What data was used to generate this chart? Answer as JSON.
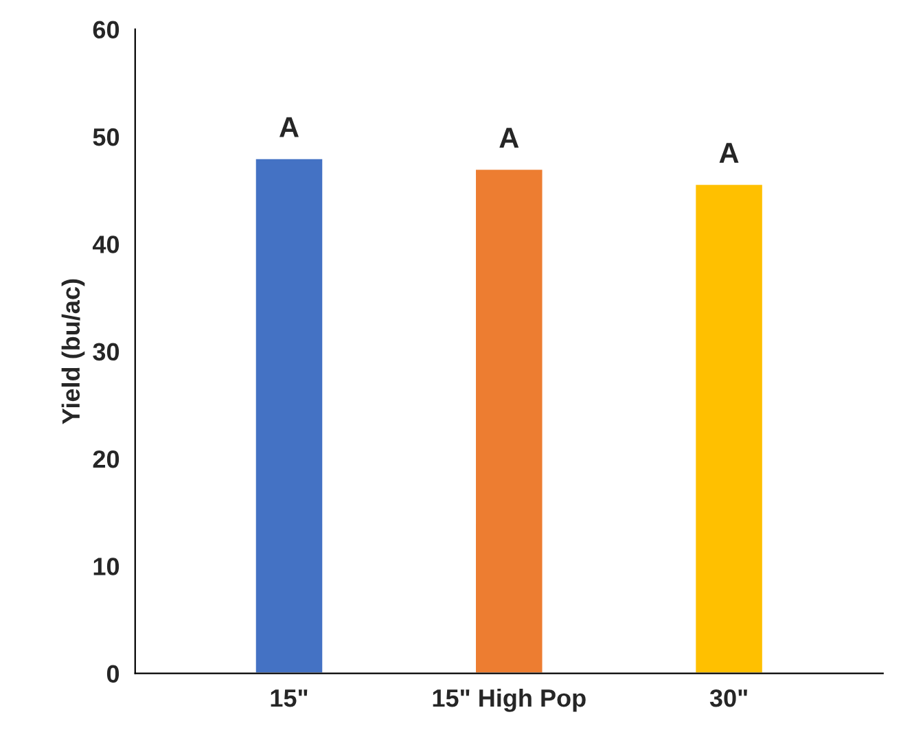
{
  "chart_data": {
    "type": "bar",
    "ylabel": "Yield (bu/ac)",
    "categories": [
      "15\"",
      "15\" High Pop",
      "30\""
    ],
    "values": [
      48,
      47,
      45.6
    ],
    "colors": [
      "#4472c4",
      "#ed7d31",
      "#ffc000"
    ],
    "ylim": [
      0,
      60
    ],
    "yticks": [
      0,
      10,
      20,
      30,
      40,
      50,
      60
    ],
    "grid": false,
    "annotations": [
      {
        "text": "A",
        "x": "15\"",
        "y": 48
      },
      {
        "text": "A",
        "x": "15\" High Pop",
        "y": 47
      },
      {
        "text": "A",
        "x": "30\"",
        "y": 45.6
      }
    ]
  }
}
